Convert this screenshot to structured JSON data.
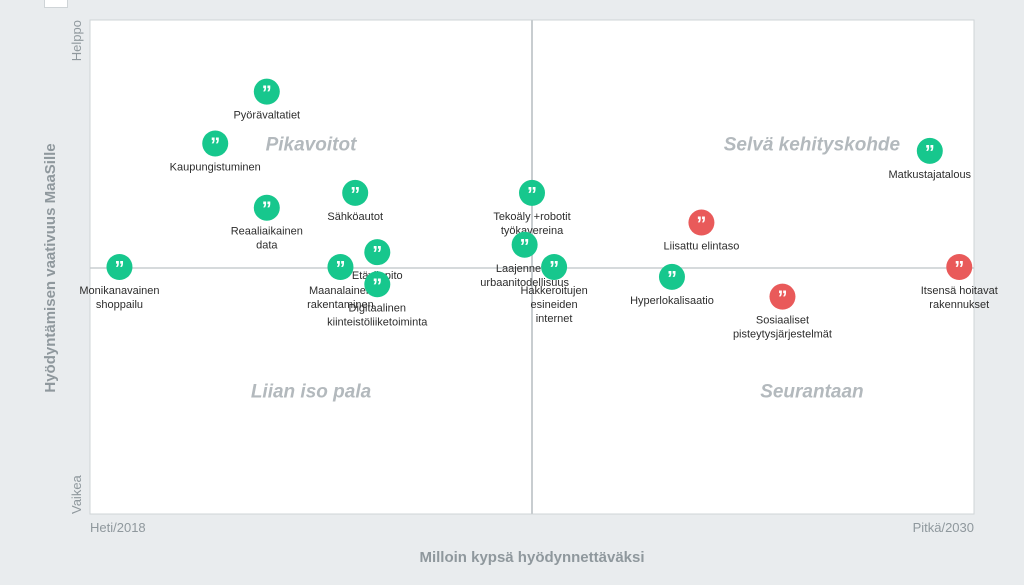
{
  "chart_data": {
    "type": "scatter",
    "xlabel": "Milloin kypsä hyödynnettäväksi",
    "ylabel": "Hyödyntämisen vaativuus MaaSille",
    "x_start_label": "Heti/2018",
    "x_end_label": "Pitkä/2030",
    "y_top_label": "Helppo",
    "y_bottom_label": "Vaikea",
    "xlim": [
      2018,
      2030
    ],
    "ylim": [
      -1,
      1
    ],
    "quadrants": [
      {
        "name": "Pikavoitot",
        "x": 2021,
        "y": 0.5
      },
      {
        "name": "Selvä kehityskohde",
        "x": 2027.8,
        "y": 0.5
      },
      {
        "name": "Liian iso pala",
        "x": 2021,
        "y": -0.5
      },
      {
        "name": "Seurantaan",
        "x": 2027.8,
        "y": -0.5
      }
    ],
    "colors": {
      "green": "#17c78d",
      "red": "#e95a5a"
    },
    "series": [
      {
        "color": "green",
        "points": [
          {
            "label": [
              "Pyörävaltatiet"
            ],
            "x": 2020.4,
            "y": 0.71
          },
          {
            "label": [
              "Kaupungistuminen"
            ],
            "x": 2019.7,
            "y": 0.5
          },
          {
            "label": [
              "Sähköautot"
            ],
            "x": 2021.6,
            "y": 0.3
          },
          {
            "label": [
              "Reaaliaikainen",
              "data"
            ],
            "x": 2020.4,
            "y": 0.24
          },
          {
            "label": [
              "Monikanavainen",
              "shoppailu"
            ],
            "x": 2018.4,
            "y": 0.0
          },
          {
            "label": [
              "Etäyllapito"
            ],
            "x": 2021.9,
            "y": 0.06
          },
          {
            "label": [
              "Maanalainen",
              "rakentaminen"
            ],
            "x": 2021.4,
            "y": 0.0
          },
          {
            "label": [
              "Digitaalinen",
              "kiinteistöliiketoiminta"
            ],
            "x": 2021.9,
            "y": -0.07
          },
          {
            "label": [
              "Tekoäly +robotit",
              "työkavereina"
            ],
            "x": 2024.0,
            "y": 0.3
          },
          {
            "label": [
              "Laajennettu",
              "urbaanitodellisuus"
            ],
            "x": 2023.9,
            "y": 0.09
          },
          {
            "label": [
              "Hakkeroitujen",
              "esineiden",
              "internet"
            ],
            "x": 2024.3,
            "y": 0.0
          },
          {
            "label": [
              "Hyperlokalisaatio"
            ],
            "x": 2025.9,
            "y": -0.04
          },
          {
            "label": [
              "Matkustajatalous"
            ],
            "x": 2029.4,
            "y": 0.47
          }
        ]
      },
      {
        "color": "red",
        "points": [
          {
            "label": [
              "Liisattu elintaso"
            ],
            "x": 2026.3,
            "y": 0.18
          },
          {
            "label": [
              "Sosiaaliset",
              "pisteytysjärjestelmät"
            ],
            "x": 2027.4,
            "y": -0.12
          },
          {
            "label": [
              "Itsensä hoitavat",
              "rakennukset"
            ],
            "x": 2029.8,
            "y": 0.0
          }
        ]
      }
    ]
  }
}
